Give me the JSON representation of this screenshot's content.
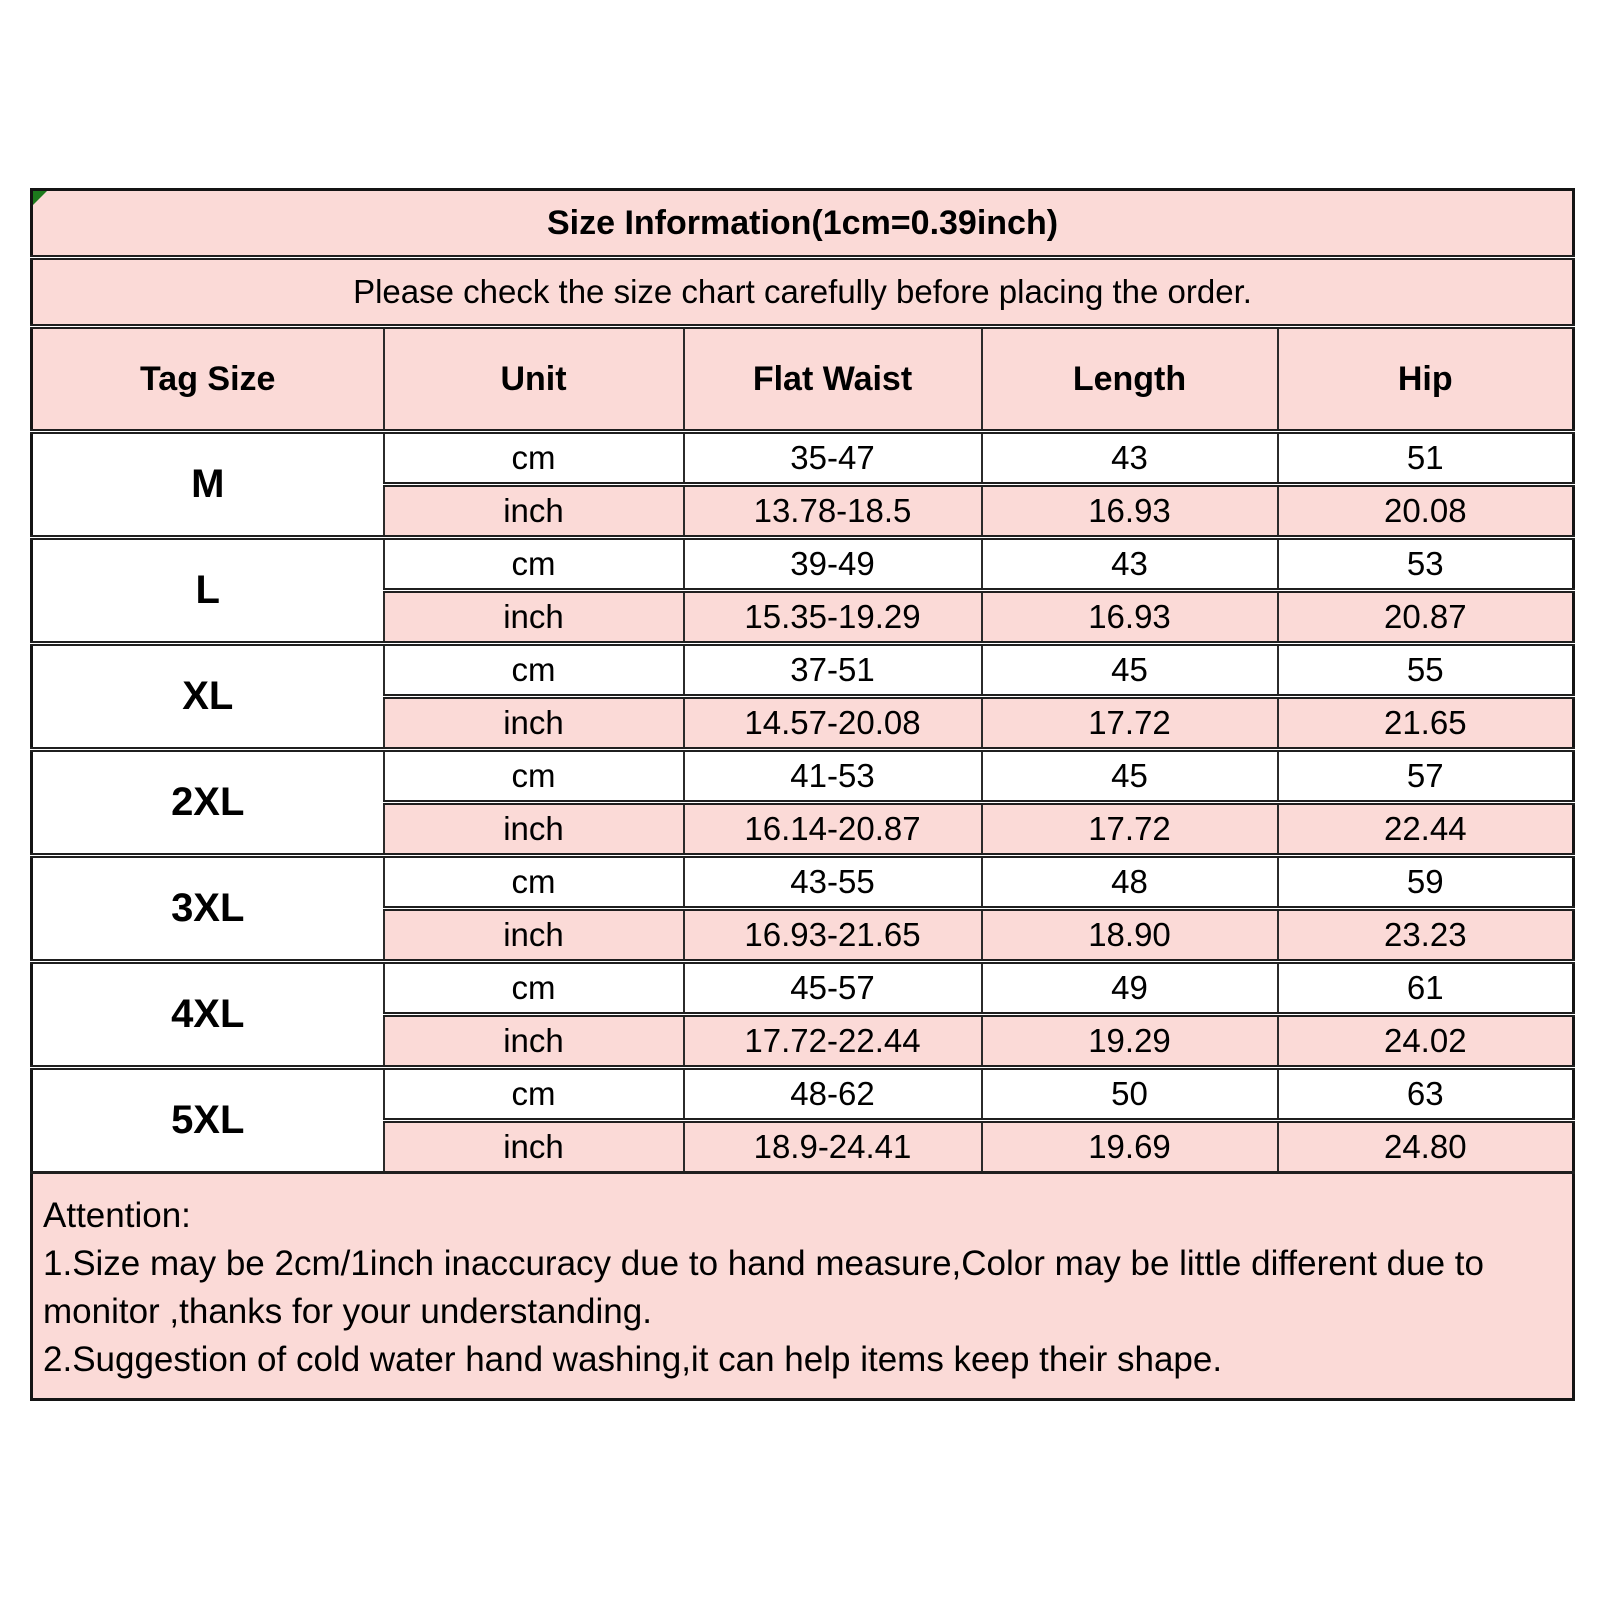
{
  "colors": {
    "cell_pink": "#fbdad7",
    "cell_white": "#ffffff",
    "grid_line": "#1f1f1f",
    "corner_marker_green": "#1d7a1d",
    "text": "#000000"
  },
  "size_chart": {
    "title": "Size Information(1cm=0.39inch)",
    "subtitle": "Please check the size chart carefully before placing the order.",
    "columns": [
      "Tag Size",
      "Unit",
      "Flat Waist",
      "Length",
      "Hip"
    ],
    "sizes": [
      {
        "tag": "M",
        "rows": [
          {
            "unit": "cm",
            "values": [
              "35-47",
              "43",
              "51"
            ]
          },
          {
            "unit": "inch",
            "values": [
              "13.78-18.5",
              "16.93",
              "20.08"
            ]
          }
        ]
      },
      {
        "tag": "L",
        "rows": [
          {
            "unit": "cm",
            "values": [
              "39-49",
              "43",
              "53"
            ]
          },
          {
            "unit": "inch",
            "values": [
              "15.35-19.29",
              "16.93",
              "20.87"
            ]
          }
        ]
      },
      {
        "tag": "XL",
        "rows": [
          {
            "unit": "cm",
            "values": [
              "37-51",
              "45",
              "55"
            ]
          },
          {
            "unit": "inch",
            "values": [
              "14.57-20.08",
              "17.72",
              "21.65"
            ]
          }
        ]
      },
      {
        "tag": "2XL",
        "rows": [
          {
            "unit": "cm",
            "values": [
              "41-53",
              "45",
              "57"
            ]
          },
          {
            "unit": "inch",
            "values": [
              "16.14-20.87",
              "17.72",
              "22.44"
            ]
          }
        ]
      },
      {
        "tag": "3XL",
        "rows": [
          {
            "unit": "cm",
            "values": [
              "43-55",
              "48",
              "59"
            ]
          },
          {
            "unit": "inch",
            "values": [
              "16.93-21.65",
              "18.90",
              "23.23"
            ]
          }
        ]
      },
      {
        "tag": "4XL",
        "rows": [
          {
            "unit": "cm",
            "values": [
              "45-57",
              "49",
              "61"
            ]
          },
          {
            "unit": "inch",
            "values": [
              "17.72-22.44",
              "19.29",
              "24.02"
            ]
          }
        ]
      },
      {
        "tag": "5XL",
        "rows": [
          {
            "unit": "cm",
            "values": [
              "48-62",
              "50",
              "63"
            ]
          },
          {
            "unit": "inch",
            "values": [
              "18.9-24.41",
              "19.69",
              "24.80"
            ]
          }
        ]
      }
    ]
  },
  "attention": {
    "heading": "Attention:",
    "note1": "1.Size may be 2cm/1inch inaccuracy due to hand measure,Color may be little different due to monitor ,thanks for your understanding.",
    "note2": "2.Suggestion of cold water hand washing,it can help items keep their shape."
  }
}
